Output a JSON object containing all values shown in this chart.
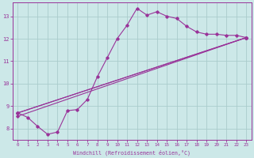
{
  "xlabel": "Windchill (Refroidissement éolien,°C)",
  "bg_color": "#cce8e8",
  "grid_color": "#aacccc",
  "line_color": "#993399",
  "xlim": [
    -0.5,
    23.5
  ],
  "ylim": [
    7.5,
    13.6
  ],
  "yticks": [
    8,
    9,
    10,
    11,
    12,
    13
  ],
  "xticks": [
    0,
    1,
    2,
    3,
    4,
    5,
    6,
    7,
    8,
    9,
    10,
    11,
    12,
    13,
    14,
    15,
    16,
    17,
    18,
    19,
    20,
    21,
    22,
    23
  ],
  "curve_line": {
    "x": [
      0,
      1,
      2,
      3,
      4,
      5,
      6,
      7,
      8,
      9,
      10,
      11,
      12,
      13,
      14,
      15,
      16,
      17,
      18,
      19,
      20,
      21,
      22,
      23
    ],
    "y": [
      8.7,
      8.5,
      8.1,
      7.75,
      7.85,
      8.8,
      8.85,
      9.3,
      10.3,
      11.15,
      12.0,
      12.6,
      13.35,
      13.05,
      13.2,
      13.0,
      12.9,
      12.55,
      12.3,
      12.2,
      12.2,
      12.15,
      12.15,
      12.05
    ]
  },
  "straight_lines": [
    {
      "x": [
        0,
        23
      ],
      "y": [
        8.7,
        12.05
      ]
    },
    {
      "x": [
        0,
        23
      ],
      "y": [
        8.7,
        12.05
      ]
    },
    {
      "x": [
        0,
        23
      ],
      "y": [
        8.55,
        12.05
      ]
    }
  ],
  "figsize": [
    3.2,
    2.0
  ],
  "dpi": 100
}
